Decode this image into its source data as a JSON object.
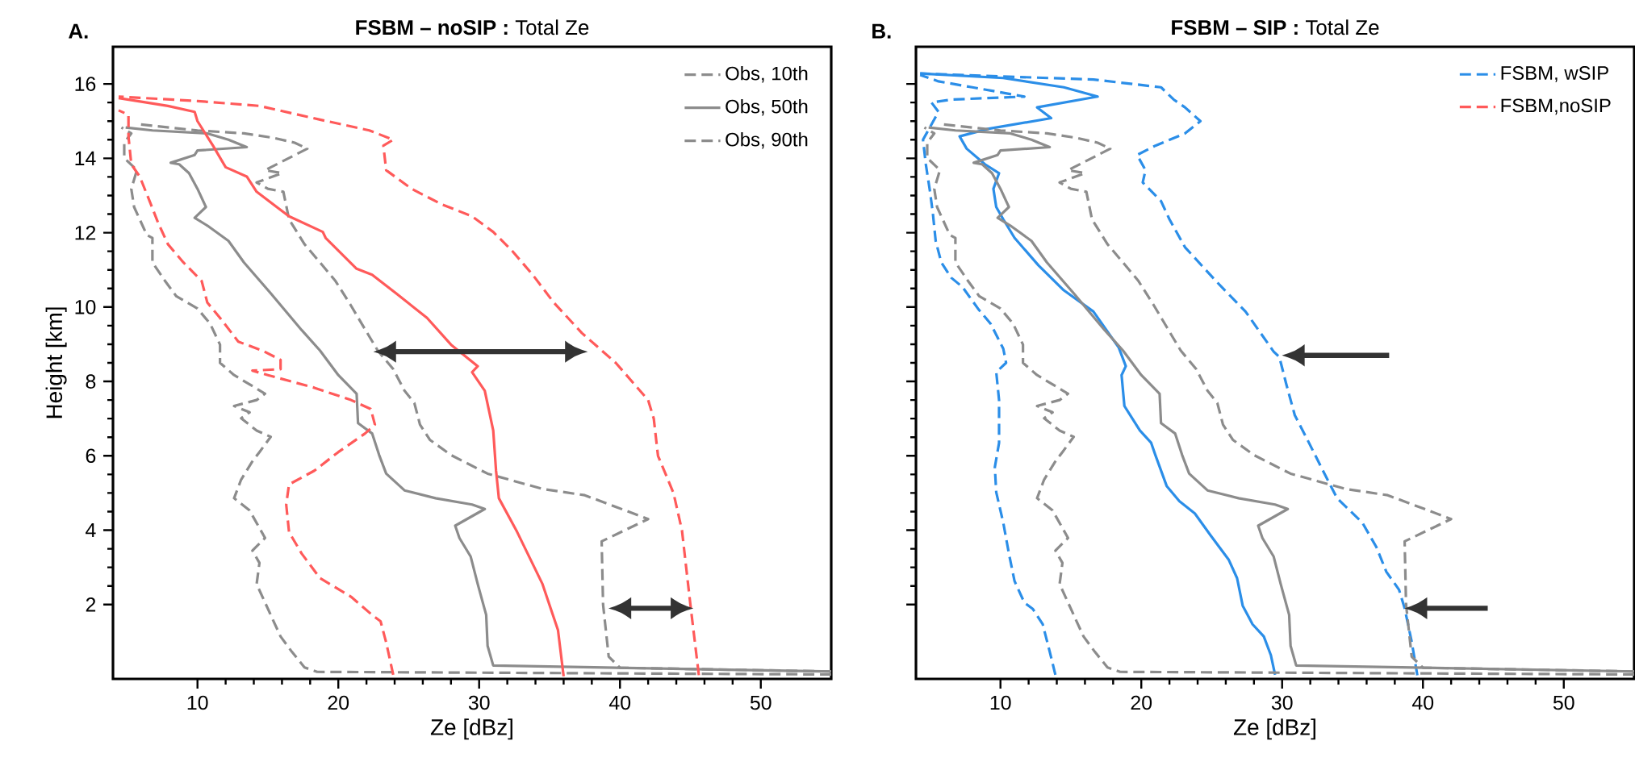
{
  "chart_data": [
    {
      "type": "line",
      "title": "**FSBM – noSIP :** Total Ze",
      "xlabel": "Ze [dBz]",
      "ylabel": "Height [km]",
      "annotations": [
        "A."
      ],
      "xlim": [
        4,
        55
      ],
      "ylim": [
        0,
        17
      ],
      "xticks": [
        10,
        20,
        30,
        40,
        50
      ],
      "yticks": [
        2,
        4,
        6,
        8,
        10,
        12,
        14,
        16
      ],
      "legend": "top right",
      "series": [
        {
          "name": "Obs, 10th",
          "color": "#8c8c8c",
          "line_style": "dashed",
          "x": [
            55,
            18.5,
            17.6,
            16.7,
            15.9,
            15.2,
            14.2,
            14.4,
            13.9,
            14.8,
            13.7,
            12.6,
            13.1,
            13.9,
            14.4,
            15.2,
            14.2,
            13.1,
            13.7,
            12.6,
            14.2,
            14.8,
            12.6,
            11.6,
            11.6,
            10.9,
            10.0,
            8.5,
            7.7,
            6.8,
            6.8,
            6.4,
            5.5,
            5.3,
            5.7,
            4.8,
            4.8,
            5.3,
            4.6
          ],
          "values": [
            0.12,
            0.19,
            0.31,
            0.73,
            1.14,
            1.72,
            2.55,
            3.12,
            3.45,
            3.79,
            4.53,
            4.86,
            5.36,
            5.85,
            6.1,
            6.51,
            6.68,
            7.01,
            7.17,
            7.34,
            7.5,
            7.67,
            8.17,
            8.5,
            8.99,
            9.55,
            9.96,
            10.29,
            10.7,
            11.2,
            11.86,
            11.94,
            12.69,
            13.18,
            13.68,
            14.01,
            14.42,
            14.67,
            14.83
          ]
        },
        {
          "name": "Obs, 50th",
          "color": "#8c8c8c",
          "line_style": "solid",
          "x": [
            55,
            31.0,
            30.6,
            30.5,
            29.9,
            29.4,
            28.6,
            28.3,
            30.4,
            29.5,
            26.9,
            24.7,
            23.4,
            22.9,
            22.4,
            21.4,
            21.3,
            20.0,
            18.7,
            17.4,
            15.2,
            13.3,
            12.2,
            10.7,
            9.8,
            10.6,
            10.0,
            9.4,
            8.7,
            8.1,
            9.8,
            10.0,
            13.5,
            12.2,
            10.7,
            6.8,
            4.9
          ],
          "values": [
            0.2,
            0.36,
            0.89,
            1.72,
            2.55,
            3.29,
            3.79,
            4.12,
            4.57,
            4.69,
            4.86,
            5.07,
            5.52,
            6.02,
            6.6,
            6.88,
            7.67,
            8.17,
            8.83,
            9.38,
            10.37,
            11.2,
            11.78,
            12.19,
            12.4,
            12.69,
            13.18,
            13.6,
            13.84,
            13.88,
            14.09,
            14.21,
            14.3,
            14.5,
            14.67,
            14.75,
            14.83
          ]
        },
        {
          "name": "Obs, 90th",
          "color": "#8c8c8c",
          "line_style": "dashed",
          "x": [
            55,
            40.0,
            39.2,
            38.8,
            38.7,
            42.0,
            37.5,
            34.5,
            30.6,
            28.0,
            26.5,
            25.8,
            25.4,
            24.7,
            23.9,
            22.8,
            22.2,
            20.9,
            19.8,
            18.7,
            17.6,
            16.5,
            16.1,
            15.0,
            14.2,
            16.0,
            14.8,
            17.8,
            16.9,
            15.4,
            13.3,
            10.0,
            5.7
          ],
          "values": [
            0.2,
            0.3,
            0.6,
            2.0,
            3.7,
            4.3,
            4.94,
            5.11,
            5.52,
            6.02,
            6.43,
            6.84,
            7.42,
            7.75,
            8.33,
            8.83,
            9.21,
            10.04,
            10.7,
            11.2,
            11.69,
            12.36,
            13.1,
            13.18,
            13.35,
            13.6,
            13.68,
            14.26,
            14.42,
            14.55,
            14.67,
            14.75,
            14.92
          ]
        },
        {
          "color": "#ff5a5a",
          "line_style": "dashed",
          "x": [
            23.9,
            23.4,
            23.0,
            22.4,
            20.9,
            18.7,
            17.4,
            16.5,
            16.3,
            16.5,
            18.3,
            20.0,
            21.9,
            22.6,
            22.3,
            20.9,
            18.3,
            15.0,
            13.9,
            15.9,
            15.9,
            14.6,
            12.9,
            11.6,
            10.7,
            10.3,
            9.0,
            7.9,
            7.2,
            6.6,
            5.9,
            5.3,
            5.1,
            5.1,
            4.4
          ],
          "values": [
            0.11,
            0.98,
            1.55,
            1.72,
            2.21,
            2.71,
            3.37,
            3.95,
            4.69,
            5.23,
            5.6,
            6.1,
            6.6,
            6.84,
            7.26,
            7.5,
            7.83,
            8.17,
            8.29,
            8.33,
            8.58,
            8.83,
            9.07,
            9.71,
            10.12,
            10.7,
            11.2,
            11.69,
            12.27,
            12.85,
            13.51,
            13.84,
            14.59,
            15.17,
            15.29
          ]
        },
        {
          "color": "#ff5a5a",
          "line_style": "solid",
          "x": [
            36.0,
            35.6,
            34.5,
            32.7,
            31.4,
            31.2,
            31.0,
            30.4,
            29.5,
            29.9,
            28.0,
            26.3,
            24.1,
            22.4,
            21.3,
            19.1,
            18.9,
            16.5,
            14.2,
            13.5,
            12.0,
            11.1,
            10.0,
            9.8,
            7.9,
            4.4
          ],
          "values": [
            0.07,
            1.31,
            2.55,
            3.95,
            4.86,
            5.6,
            6.68,
            7.75,
            8.25,
            8.41,
            8.99,
            9.71,
            10.37,
            10.87,
            11.03,
            11.86,
            12.02,
            12.44,
            13.1,
            13.51,
            13.76,
            14.34,
            15.0,
            15.25,
            15.41,
            15.62
          ]
        },
        {
          "color": "#ff5a5a",
          "line_style": "dashed",
          "x": [
            45.6,
            45.0,
            44.4,
            43.8,
            42.7,
            42.4,
            42.0,
            39.7,
            37.3,
            35.3,
            33.8,
            32.3,
            31.0,
            29.5,
            27.3,
            25.2,
            23.4,
            23.2,
            23.9,
            22.2,
            18.7,
            14.4,
            10.0,
            4.4
          ],
          "values": [
            0.1,
            2.0,
            4.0,
            5.0,
            6.0,
            7.0,
            7.5,
            8.5,
            9.3,
            10.12,
            10.87,
            11.53,
            12.02,
            12.44,
            12.77,
            13.18,
            13.68,
            14.34,
            14.5,
            14.75,
            15.04,
            15.41,
            15.54,
            15.66
          ]
        }
      ]
    },
    {
      "type": "line",
      "title": "**FSBM – SIP :** Total Ze",
      "xlabel": "Ze [dBz]",
      "annotations": [
        "B."
      ],
      "xlim": [
        4,
        55
      ],
      "ylim": [
        0,
        17
      ],
      "xticks": [
        10,
        20,
        30,
        40,
        50
      ],
      "yticks": [
        2,
        4,
        6,
        8,
        10,
        12,
        14,
        16
      ],
      "legend": "top right",
      "tick_labels": "x",
      "series": [
        {
          "name": "FSBM, wSIP",
          "color": "#2b8ee8",
          "line_style": "dashed",
          "x": [
            13.9,
            13.5,
            13.0,
            12.3,
            11.7,
            11.0,
            10.6,
            10.2,
            9.7,
            9.6,
            9.9,
            9.9,
            9.7,
            10.4,
            10.2,
            9.3,
            8.4,
            7.3,
            6.5,
            5.8,
            5.4,
            5.2,
            5.0,
            4.7,
            4.5,
            5.6,
            5.1,
            6.5,
            11.7,
            8.0,
            5.6,
            4.3
          ],
          "values": [
            0.11,
            0.73,
            1.47,
            1.88,
            2.05,
            2.63,
            3.37,
            4.2,
            5.02,
            5.69,
            6.35,
            7.5,
            8.25,
            8.5,
            8.88,
            9.55,
            9.96,
            10.54,
            10.79,
            11.2,
            11.78,
            12.52,
            13.1,
            13.84,
            14.5,
            15.25,
            15.5,
            15.58,
            15.66,
            15.91,
            16.07,
            16.24
          ]
        },
        {
          "color": "#2b8ee8",
          "line_style": "solid",
          "x": [
            29.5,
            29.2,
            28.7,
            27.9,
            27.2,
            26.8,
            26.2,
            24.9,
            23.8,
            22.7,
            21.8,
            21.0,
            20.7,
            19.9,
            18.8,
            18.6,
            18.9,
            18.4,
            16.6,
            14.5,
            12.7,
            11.0,
            10.2,
            9.7,
            9.5,
            9.9,
            8.9,
            7.6,
            7.1,
            9.1,
            13.6,
            12.6,
            16.9,
            14.5,
            10.2,
            4.3
          ],
          "values": [
            0.11,
            0.64,
            1.14,
            1.47,
            1.97,
            2.71,
            3.21,
            3.87,
            4.45,
            4.78,
            5.19,
            6.02,
            6.35,
            6.68,
            7.34,
            8.17,
            8.41,
            8.91,
            9.88,
            10.45,
            11.12,
            11.86,
            12.36,
            12.69,
            13.18,
            13.6,
            13.84,
            14.26,
            14.59,
            14.79,
            15.08,
            15.37,
            15.66,
            15.91,
            16.16,
            16.28
          ]
        },
        {
          "color": "#2b8ee8",
          "line_style": "dashed",
          "x": [
            39.6,
            39.2,
            38.7,
            38.3,
            37.4,
            36.7,
            35.7,
            33.9,
            32.9,
            31.8,
            30.9,
            30.3,
            29.8,
            29.4,
            27.4,
            25.3,
            23.1,
            22.0,
            21.4,
            20.1,
            20.3,
            19.7,
            21.0,
            23.1,
            24.2,
            23.1,
            22.3,
            21.4,
            16.6,
            10.2,
            4.3
          ],
          "values": [
            0.1,
            1.0,
            1.9,
            2.4,
            2.88,
            3.54,
            4.2,
            4.86,
            5.6,
            6.43,
            7.09,
            7.92,
            8.66,
            8.8,
            9.88,
            10.7,
            11.61,
            12.36,
            12.85,
            13.35,
            13.68,
            14.09,
            14.34,
            14.67,
            15.0,
            15.37,
            15.58,
            15.91,
            16.12,
            16.2,
            16.28
          ]
        },
        {
          "color": "#8c8c8c",
          "line_style": "dashed",
          "x": [
            55,
            18.5,
            17.6,
            16.7,
            15.9,
            15.2,
            14.2,
            14.4,
            13.9,
            14.8,
            13.7,
            12.6,
            13.1,
            13.9,
            14.4,
            15.2,
            14.2,
            13.1,
            13.7,
            12.6,
            14.2,
            14.8,
            12.6,
            11.6,
            11.6,
            10.9,
            10.0,
            8.5,
            7.7,
            6.8,
            6.8,
            6.4,
            5.5,
            5.3,
            5.7,
            4.8,
            4.8,
            5.3,
            4.6
          ],
          "values": [
            0.12,
            0.19,
            0.31,
            0.73,
            1.14,
            1.72,
            2.55,
            3.12,
            3.45,
            3.79,
            4.53,
            4.86,
            5.36,
            5.85,
            6.1,
            6.51,
            6.68,
            7.01,
            7.17,
            7.34,
            7.5,
            7.67,
            8.17,
            8.5,
            8.99,
            9.55,
            9.96,
            10.29,
            10.7,
            11.2,
            11.86,
            11.94,
            12.69,
            13.18,
            13.68,
            14.01,
            14.42,
            14.67,
            14.83
          ]
        },
        {
          "color": "#8c8c8c",
          "line_style": "solid",
          "x": [
            55,
            31.0,
            30.6,
            30.5,
            29.9,
            29.4,
            28.6,
            28.3,
            30.4,
            29.5,
            26.9,
            24.7,
            23.4,
            22.9,
            22.4,
            21.4,
            21.3,
            20.0,
            18.7,
            17.4,
            15.2,
            13.3,
            12.2,
            10.7,
            9.8,
            10.6,
            10.0,
            9.4,
            8.7,
            8.1,
            9.8,
            10.0,
            13.5,
            12.2,
            10.7,
            6.8,
            4.9
          ],
          "values": [
            0.2,
            0.36,
            0.89,
            1.72,
            2.55,
            3.29,
            3.79,
            4.12,
            4.57,
            4.69,
            4.86,
            5.07,
            5.52,
            6.02,
            6.6,
            6.88,
            7.67,
            8.17,
            8.83,
            9.38,
            10.37,
            11.2,
            11.78,
            12.19,
            12.4,
            12.69,
            13.18,
            13.6,
            13.84,
            13.88,
            14.09,
            14.21,
            14.3,
            14.5,
            14.67,
            14.75,
            14.83
          ]
        },
        {
          "color": "#8c8c8c",
          "line_style": "dashed",
          "x": [
            55,
            40.0,
            39.2,
            38.8,
            38.7,
            42.0,
            37.5,
            34.5,
            30.6,
            28.0,
            26.5,
            25.8,
            25.4,
            24.7,
            23.9,
            22.8,
            22.2,
            20.9,
            19.8,
            18.7,
            17.6,
            16.5,
            16.1,
            15.0,
            14.2,
            16.0,
            14.8,
            17.8,
            16.9,
            15.4,
            13.3,
            10.0,
            5.7
          ],
          "values": [
            0.2,
            0.3,
            0.6,
            2.0,
            3.7,
            4.3,
            4.94,
            5.11,
            5.52,
            6.02,
            6.43,
            6.84,
            7.42,
            7.75,
            8.33,
            8.83,
            9.21,
            10.04,
            10.7,
            11.2,
            11.69,
            12.36,
            13.1,
            13.18,
            13.35,
            13.6,
            13.68,
            14.26,
            14.42,
            14.55,
            14.67,
            14.75,
            14.92
          ]
        },
        {
          "name": "FSBM,noSIP",
          "color": "#ff5a5a",
          "line_style": "dashed"
        }
      ]
    }
  ]
}
